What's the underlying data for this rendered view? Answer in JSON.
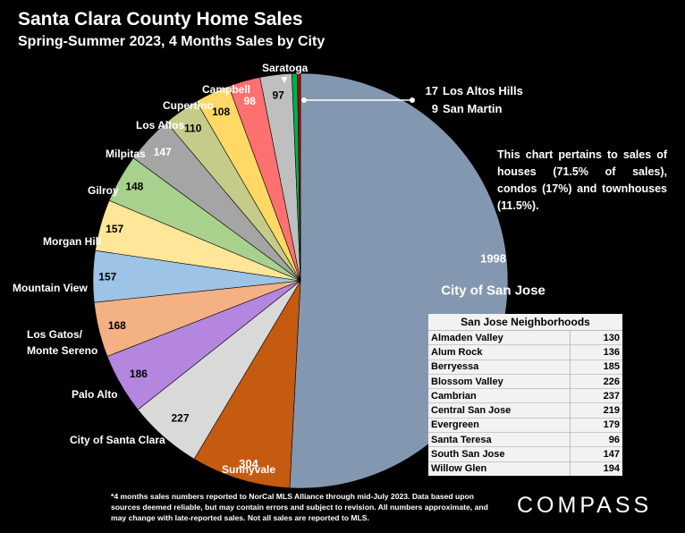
{
  "header": {
    "title": "Santa Clara County Home Sales",
    "subtitle": "Spring-Summer 2023, 4 Months Sales by City"
  },
  "chart_data": {
    "type": "pie",
    "title": "Santa Clara County Home Sales",
    "subtitle": "Spring-Summer 2023, 4 Months Sales by City",
    "slices": [
      {
        "label": "City of San Jose",
        "value": 1998,
        "color": "#8497b0"
      },
      {
        "label": "Sunnyvale",
        "value": 304,
        "color": "#c55a11"
      },
      {
        "label": "City of Santa Clara",
        "value": 227,
        "color": "#d9d9d9"
      },
      {
        "label": "Palo Alto",
        "value": 186,
        "color": "#b486df"
      },
      {
        "label": "Los Gatos/ Monte Sereno",
        "value": 168,
        "color": "#f4b183"
      },
      {
        "label": "Mountain View",
        "value": 157,
        "color": "#9dc3e6"
      },
      {
        "label": "Morgan Hill",
        "value": 157,
        "color": "#ffe699"
      },
      {
        "label": "Gilroy",
        "value": 148,
        "color": "#a9d18e"
      },
      {
        "label": "Milpitas",
        "value": 147,
        "color": "#a5a5a5"
      },
      {
        "label": "Los Altos",
        "value": 110,
        "color": "#c5cc8a"
      },
      {
        "label": "Cupertino",
        "value": 108,
        "color": "#ffd966"
      },
      {
        "label": "Campbell",
        "value": 98,
        "color": "#ff7070"
      },
      {
        "label": "Saratoga",
        "value": 97,
        "color": "#bfbfbf"
      },
      {
        "label": "Los Altos Hills",
        "value": 17,
        "color": "#00b050"
      },
      {
        "label": "San Martin",
        "value": 9,
        "color": "#c00000"
      }
    ]
  },
  "annotations": {
    "saratoga_marker": "▼",
    "small_cities": [
      {
        "value": "17",
        "label": "Los Altos Hills"
      },
      {
        "value": "9",
        "label": "San Martin"
      }
    ],
    "note": "This chart pertains to sales of houses (71.5% of sales), condos (17%) and townhouses (11.5%)."
  },
  "neighborhoods": {
    "heading": "San Jose Neighborhoods",
    "rows": [
      {
        "name": "Almaden Valley",
        "value": "130"
      },
      {
        "name": "Alum Rock",
        "value": "136"
      },
      {
        "name": "Berryessa",
        "value": "185"
      },
      {
        "name": "Blossom Valley",
        "value": "226"
      },
      {
        "name": "Cambrian",
        "value": "237"
      },
      {
        "name": "Central San Jose",
        "value": "219"
      },
      {
        "name": "Evergreen",
        "value": "179"
      },
      {
        "name": "Santa Teresa",
        "value": "96"
      },
      {
        "name": "South San Jose",
        "value": "147"
      },
      {
        "name": "Willow Glen",
        "value": "194"
      }
    ]
  },
  "footer": {
    "footnote": "*4 months sales numbers reported to NorCal MLS Alliance through mid-July 2023. Data based upon sources deemed reliable, but may contain errors and subject to revision. All numbers approximate, and may change with late-reported sales. Not all sales are reported to MLS.",
    "brand": "COMPASS"
  }
}
